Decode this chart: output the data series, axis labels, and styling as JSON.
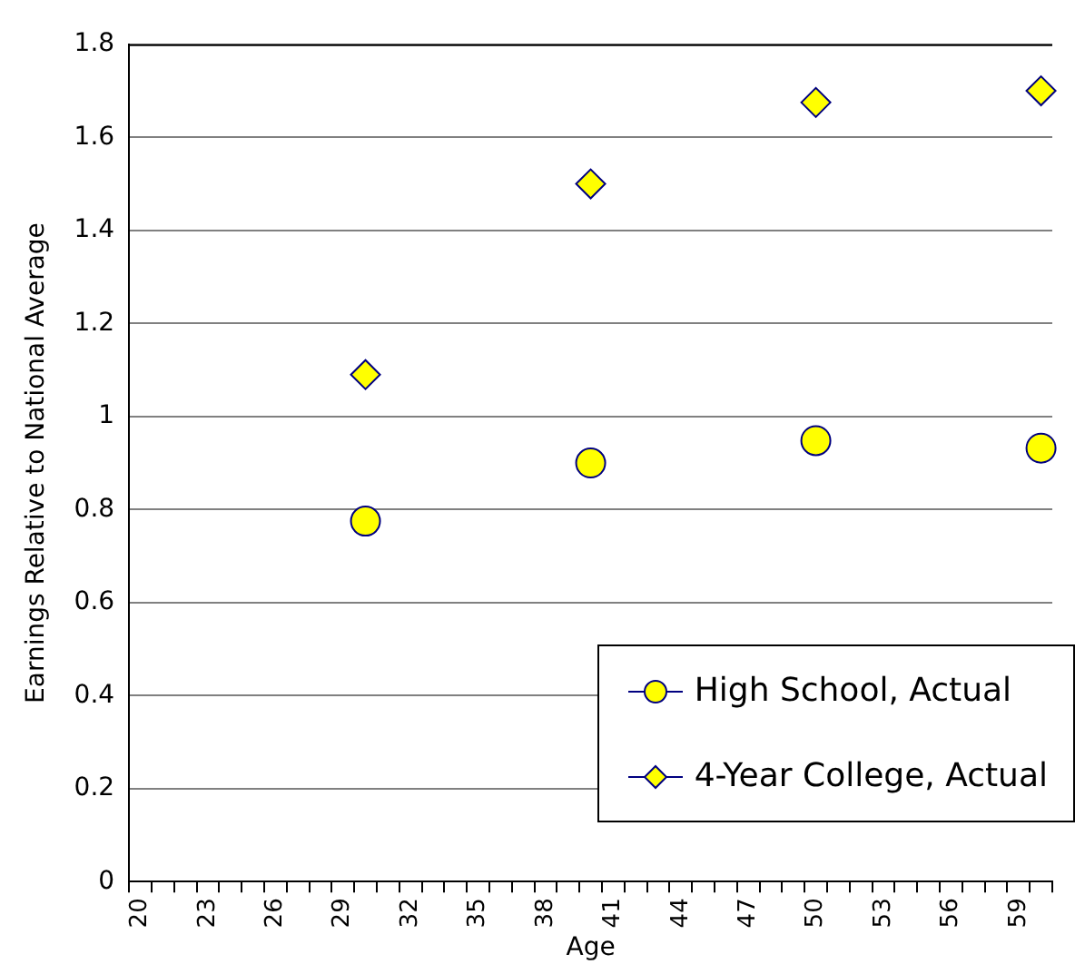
{
  "chart_data": {
    "type": "scatter",
    "xlabel": "Age",
    "ylabel": "Earnings Relative to National Average",
    "categories": [
      "20",
      null,
      null,
      "23",
      null,
      null,
      "26",
      null,
      null,
      "29",
      null,
      null,
      "32",
      null,
      null,
      "35",
      null,
      null,
      "38",
      null,
      null,
      "41",
      null,
      null,
      "44",
      null,
      null,
      "47",
      null,
      null,
      "50",
      null,
      null,
      "53",
      null,
      null,
      "56",
      null,
      null,
      "59",
      null
    ],
    "series": [
      {
        "name": "High School, Actual",
        "color": "#ffff00",
        "marker": "circle",
        "values": [
          null,
          null,
          null,
          null,
          null,
          null,
          null,
          null,
          null,
          null,
          0.775,
          null,
          null,
          null,
          null,
          null,
          null,
          null,
          null,
          null,
          0.9,
          null,
          null,
          null,
          null,
          null,
          null,
          null,
          null,
          null,
          0.948,
          null,
          null,
          null,
          null,
          null,
          null,
          null,
          null,
          null,
          0.932
        ]
      },
      {
        "name": "4-Year College, Actual",
        "color": "#ffff00",
        "marker": "diamond",
        "values": [
          null,
          null,
          null,
          null,
          null,
          null,
          null,
          null,
          null,
          null,
          1.09,
          null,
          null,
          null,
          null,
          null,
          null,
          null,
          null,
          null,
          1.5,
          null,
          null,
          null,
          null,
          null,
          null,
          null,
          null,
          null,
          1.675,
          null,
          null,
          null,
          null,
          null,
          null,
          null,
          null,
          null,
          1.7
        ]
      }
    ],
    "ylim": [
      0,
      1.8
    ],
    "yticks": [
      0,
      0.2,
      0.4,
      0.6,
      0.8,
      1,
      1.2,
      1.4,
      1.6,
      1.8
    ],
    "grid": "y",
    "legend": "bottom right"
  }
}
